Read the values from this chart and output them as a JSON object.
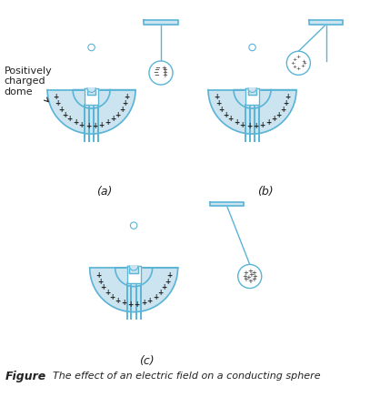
{
  "figure_label": "Figure",
  "figure_caption": "The effect of an electric field on a conducting sphere",
  "label_a": "(a)",
  "label_b": "(b)",
  "label_c": "(c)",
  "annotation_text": "Positively\ncharged\ndome",
  "dome_fill": "#cce4f0",
  "dome_edge": "#5ab4d6",
  "bg_color": "#ffffff",
  "plus_color": "#222222",
  "line_color": "#5ab4d6",
  "text_color": "#222222",
  "font_size_label": 9,
  "font_size_caption": 8,
  "font_size_annotation": 8
}
